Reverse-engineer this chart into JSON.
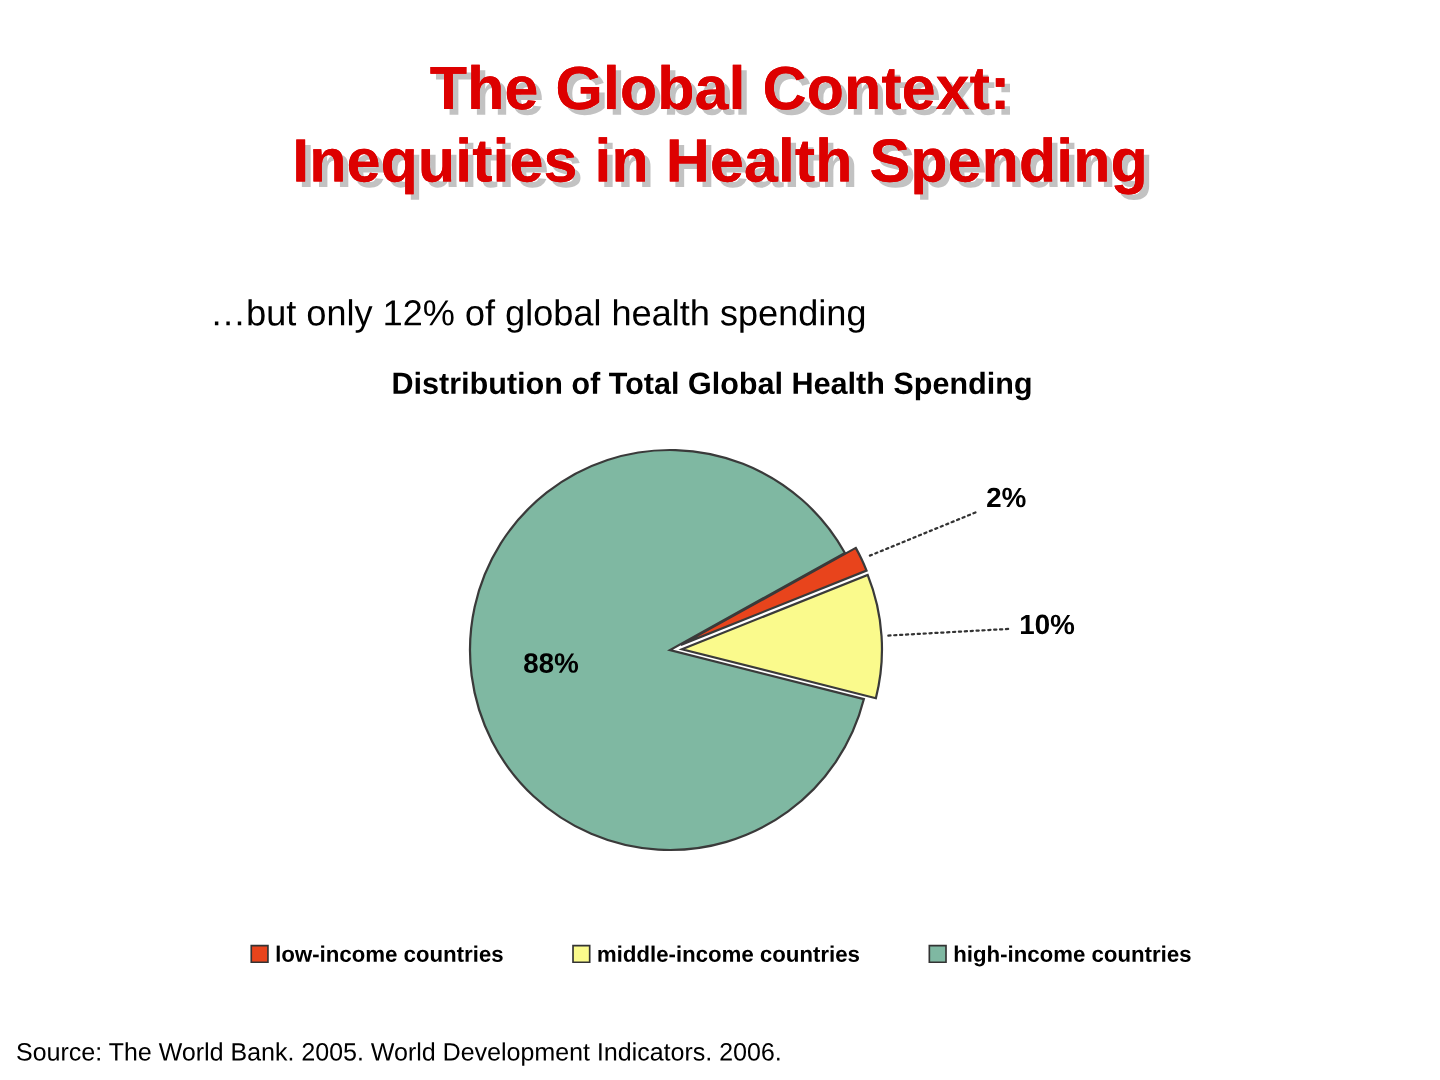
{
  "chart_data": {
    "type": "pie",
    "title": "The Global Context:\nInequities in Health Spending",
    "subtitle": "…but only 12% of global health spending",
    "annotations": [
      "Distribution of Total Global Health Spending",
      "Source: The World Bank. 2005. World Development Indicators. 2006."
    ],
    "categories": [
      "low-income countries",
      "middle-income countries",
      "high-income countries"
    ],
    "values": [
      2,
      10,
      88
    ],
    "colors": [
      "#e8441c",
      "#fafa8c",
      "#7fb8a2"
    ],
    "value_labels": [
      "2%",
      "10%",
      "88%"
    ],
    "legend": "bottom"
  }
}
